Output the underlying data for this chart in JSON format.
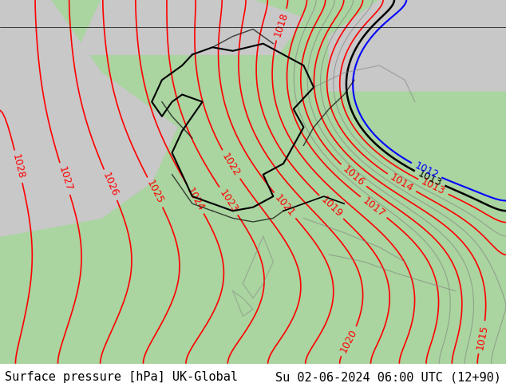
{
  "title_left": "Surface pressure [hPa] UK-Global",
  "title_right": "Su 02-06-2024 06:00 UTC (12+90)",
  "title_fontsize": 11,
  "title_color": "#000000",
  "bg_color": "#aad4a0",
  "sea_color": "#c8c8c8",
  "border_color": "#000000",
  "red_contour_color": "#ff0000",
  "black_contour_color": "#000000",
  "blue_contour_color": "#0000ff",
  "gray_contour_color": "#808080",
  "label_fontsize": 9,
  "contour_linewidth": 1.2,
  "figsize": [
    6.34,
    4.9
  ],
  "dpi": 100
}
